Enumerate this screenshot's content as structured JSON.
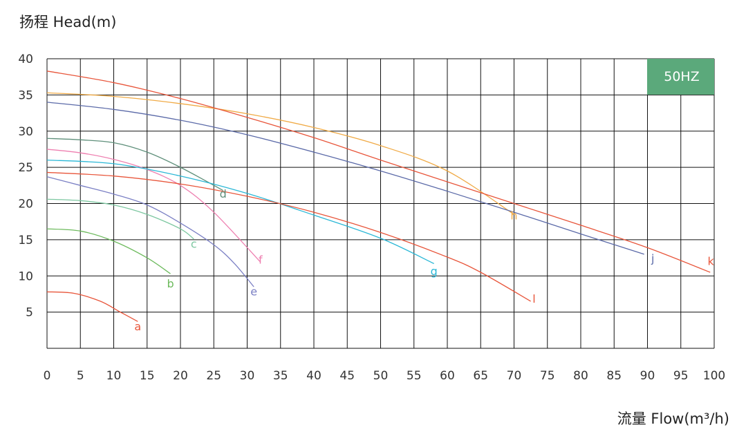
{
  "chart_data": {
    "type": "line",
    "ylabel": "扬程 Head(m)",
    "xlabel": "流量 Flow(m³/h)",
    "badge": "50HZ",
    "badge_color": "#5ba97b",
    "xlim": [
      0,
      100
    ],
    "ylim": [
      0,
      40
    ],
    "x_ticks": [
      "0",
      "5",
      "10",
      "15",
      "20",
      "25",
      "30",
      "35",
      "40",
      "45",
      "50",
      "55",
      "60",
      "65",
      "70",
      "75",
      "80",
      "85",
      "90",
      "95",
      "100"
    ],
    "y_ticks": [
      "5",
      "10",
      "15",
      "20",
      "25",
      "30",
      "35",
      "40"
    ],
    "grid": true,
    "series": [
      {
        "name": "a",
        "color": "#e8553a",
        "x": [
          0,
          4,
          8,
          11,
          13.6
        ],
        "y": [
          7.8,
          7.6,
          6.5,
          5,
          3.7
        ],
        "label_pos": [
          13.6,
          2.5
        ]
      },
      {
        "name": "b",
        "color": "#6cba5c",
        "x": [
          0,
          5,
          10,
          15,
          18.5
        ],
        "y": [
          16.5,
          16.2,
          14.8,
          12.5,
          10.3
        ],
        "label_pos": [
          18.5,
          8.4
        ]
      },
      {
        "name": "c",
        "color": "#7cc7a0",
        "x": [
          0,
          5,
          10,
          15,
          20,
          22
        ],
        "y": [
          20.6,
          20.4,
          19.8,
          18.5,
          16.5,
          15.1
        ],
        "label_pos": [
          22,
          13.9
        ]
      },
      {
        "name": "d",
        "color": "#5e8f7a",
        "x": [
          0,
          5,
          10,
          15,
          20,
          26.4
        ],
        "y": [
          29,
          28.8,
          28.4,
          27.1,
          25,
          21.8
        ],
        "label_pos": [
          26.4,
          20.8
        ]
      },
      {
        "name": "e",
        "color": "#7a7fc4",
        "x": [
          0,
          5,
          10,
          15,
          20,
          25,
          28,
          31
        ],
        "y": [
          23.7,
          22.5,
          21.3,
          19.8,
          17.3,
          14.3,
          11.8,
          8.5
        ],
        "label_pos": [
          31,
          7.3
        ]
      },
      {
        "name": "f",
        "color": "#ee7fb0",
        "x": [
          0,
          5,
          10,
          15,
          20,
          25,
          32
        ],
        "y": [
          27.5,
          27,
          26.1,
          24.7,
          22.5,
          18.8,
          11.9
        ],
        "label_pos": [
          32,
          11.7
        ]
      },
      {
        "name": "g",
        "color": "#29b7d6",
        "x": [
          0,
          10,
          20,
          30,
          40,
          50,
          58
        ],
        "y": [
          26,
          25.5,
          23.8,
          21.4,
          18.4,
          15.2,
          11.7
        ],
        "label_pos": [
          58,
          10.1
        ]
      },
      {
        "name": "h",
        "color": "#f0aa45",
        "x": [
          0,
          10,
          20,
          30,
          40,
          50,
          60,
          70
        ],
        "y": [
          35.3,
          34.8,
          33.8,
          32.4,
          30.5,
          28,
          24.5,
          18.5
        ],
        "label_pos": [
          70,
          17.8
        ]
      },
      {
        "name": "j",
        "color": "#5b6aa8",
        "x": [
          0,
          10,
          20,
          30,
          40,
          50,
          60,
          70,
          80,
          89.5
        ],
        "y": [
          34,
          33,
          31.5,
          29.5,
          27.1,
          24.5,
          21.7,
          18.8,
          15.8,
          13
        ],
        "label_pos": [
          90.8,
          11.9
        ]
      },
      {
        "name": "k",
        "color": "#e8553a",
        "x": [
          0,
          10,
          20,
          30,
          40,
          50,
          60,
          70,
          80,
          90,
          99.4
        ],
        "y": [
          38.3,
          36.7,
          34.5,
          31.9,
          29.1,
          26,
          23,
          20,
          17,
          13.9,
          10.5
        ],
        "label_pos": [
          99.5,
          11.5
        ]
      },
      {
        "name": "l",
        "color": "#e8553a",
        "x": [
          0,
          10,
          20,
          30,
          40,
          50,
          60,
          65,
          72.5
        ],
        "y": [
          24.3,
          23.8,
          22.7,
          21,
          18.8,
          16,
          12.6,
          10.5,
          6.5
        ],
        "label_pos": [
          73,
          6.3
        ]
      }
    ]
  }
}
